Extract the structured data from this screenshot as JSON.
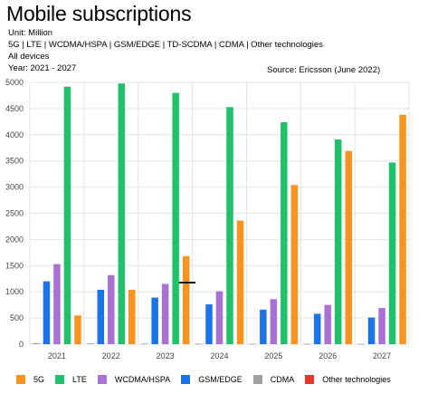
{
  "header": {
    "title": "Mobile subscriptions",
    "unit": "Unit: Million",
    "technologies": "5G | LTE | WCDMA/HSPA | GSM/EDGE | TD-SCDMA | CDMA | Other technologies",
    "devices": "All devices",
    "years": "Year: 2021 - 2027",
    "source": "Source: Ericsson (June 2022)"
  },
  "colors": {
    "5G": "#f7931e",
    "LTE": "#1fc16b",
    "WCDMA/HSPA": "#a970d6",
    "GSM/EDGE": "#1a73e8",
    "CDMA": "#a0a0a0",
    "Other technologies": "#e8342c",
    "grid": "#e4e4e4",
    "tick": "#444444"
  },
  "legend": [
    {
      "label": "5G",
      "color_key": "5G"
    },
    {
      "label": "LTE",
      "color_key": "LTE"
    },
    {
      "label": "WCDMA/HSPA",
      "color_key": "WCDMA/HSPA"
    },
    {
      "label": "GSM/EDGE",
      "color_key": "GSM/EDGE"
    },
    {
      "label": "CDMA",
      "color_key": "CDMA"
    },
    {
      "label": "Other technologies",
      "color_key": "Other technologies"
    }
  ],
  "chart_data": {
    "type": "bar",
    "title": "Mobile subscriptions",
    "xlabel": "",
    "ylabel": "",
    "ylim": [
      0,
      5000
    ],
    "yticks": [
      0,
      500,
      1000,
      1500,
      2000,
      2500,
      3000,
      3500,
      4000,
      4500,
      5000
    ],
    "grid": true,
    "legend_position": "bottom",
    "categories": [
      "2021",
      "2022",
      "2023",
      "2024",
      "2025",
      "2026",
      "2027"
    ],
    "series": [
      {
        "name": "CDMA",
        "values": [
          20,
          15,
          12,
          10,
          8,
          6,
          5
        ]
      },
      {
        "name": "GSM/EDGE",
        "values": [
          1200,
          1040,
          890,
          760,
          660,
          580,
          510
        ]
      },
      {
        "name": "WCDMA/HSPA",
        "values": [
          1530,
          1320,
          1150,
          1010,
          860,
          750,
          690
        ]
      },
      {
        "name": "LTE",
        "values": [
          4920,
          4980,
          4800,
          4530,
          4240,
          3910,
          3470
        ]
      },
      {
        "name": "5G",
        "values": [
          550,
          1040,
          1680,
          2360,
          3040,
          3690,
          4380
        ]
      }
    ]
  }
}
